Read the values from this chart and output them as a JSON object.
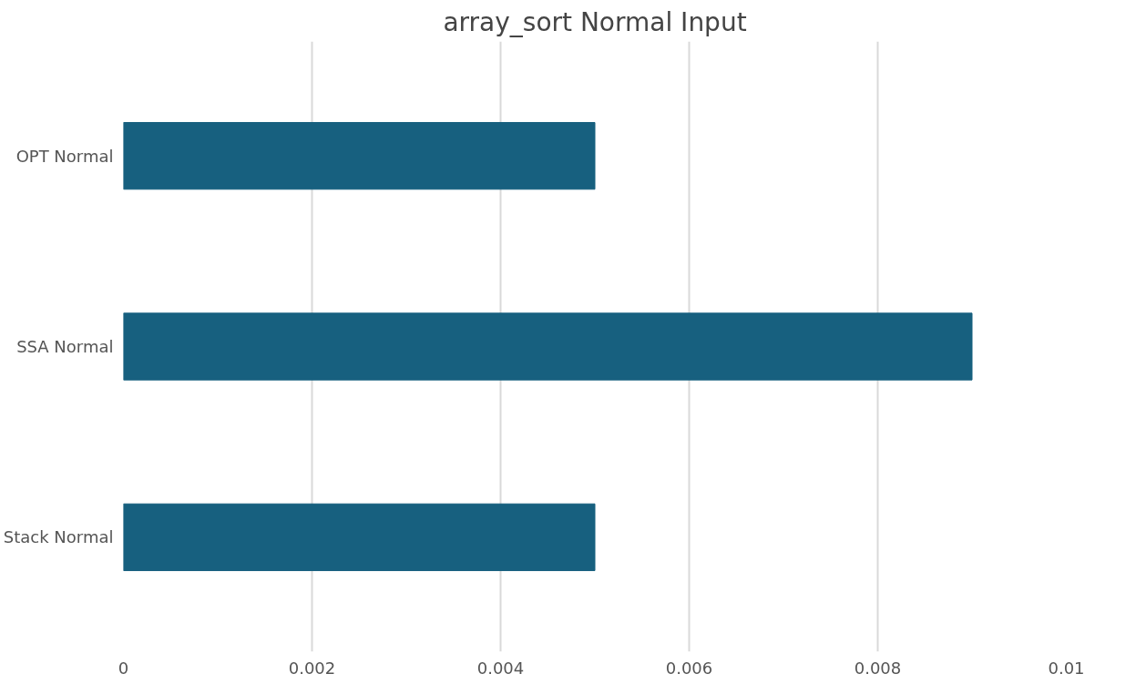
{
  "chart_data": {
    "type": "bar",
    "orientation": "horizontal",
    "title": "array_sort Normal Input",
    "categories": [
      "OPT Normal",
      "SSA Normal",
      "Stack Normal"
    ],
    "values": [
      0.005,
      0.009,
      0.005
    ],
    "color": "#17607f",
    "xlim": [
      0,
      0.01
    ],
    "xticks": [
      0,
      0.002,
      0.004,
      0.006,
      0.008,
      0.01
    ],
    "grid": "x"
  }
}
